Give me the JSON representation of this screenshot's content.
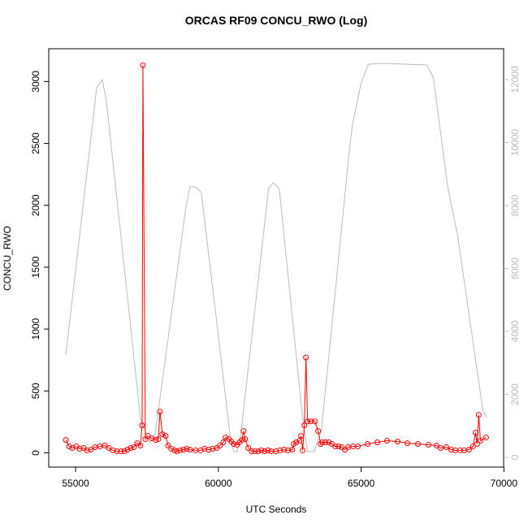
{
  "chart_data": {
    "type": "line",
    "title": "ORCAS RF09 CONCU_RWO (Log)",
    "xlabel": "UTC Seconds",
    "ylabel": "CONCU_RWO",
    "xlim": [
      54060,
      69990
    ],
    "ylim": [
      -115,
      3265
    ],
    "y2lim": [
      -310,
      12980
    ],
    "xticks": [
      55000,
      60000,
      65000,
      70000
    ],
    "yticks": [
      0,
      500,
      1000,
      1500,
      2000,
      2500,
      3000
    ],
    "y2ticks": [
      0,
      2000,
      4000,
      6000,
      8000,
      10000,
      12000
    ],
    "y2color": "#bbbbbb",
    "series": [
      {
        "color": "#ff0000",
        "marker": "circle",
        "x": [
          54659,
          54773,
          54886,
          55028,
          55142,
          55284,
          55398,
          55540,
          55682,
          55852,
          56023,
          56165,
          56307,
          56449,
          56591,
          56705,
          56818,
          56932,
          57045,
          57159,
          57273,
          57330,
          57358,
          57443,
          57528,
          57670,
          57812,
          57898,
          57955,
          58040,
          58153,
          58239,
          58352,
          58466,
          58551,
          58665,
          58778,
          58892,
          59006,
          59205,
          59375,
          59517,
          59659,
          59801,
          59943,
          60057,
          60170,
          60256,
          60369,
          60455,
          60540,
          60653,
          60739,
          60824,
          60881,
          60938,
          61051,
          61165,
          61278,
          61392,
          61506,
          61619,
          61733,
          61847,
          62017,
          62159,
          62301,
          62443,
          62585,
          62642,
          62727,
          62841,
          62898,
          62955,
          63011,
          63068,
          63125,
          63239,
          63381,
          63494,
          63580,
          63636,
          63750,
          63864,
          63977,
          64091,
          64205,
          64318,
          64432,
          64545,
          64716,
          64886,
          65227,
          65568,
          65909,
          66278,
          66619,
          66989,
          67358,
          67642,
          67784,
          67983,
          68153,
          68295,
          68466,
          68608,
          68778,
          68920,
          69006,
          69062,
          69119,
          69176,
          69375
        ],
        "values": [
          104,
          52,
          39,
          52,
          33,
          39,
          20,
          26,
          46,
          52,
          59,
          39,
          20,
          13,
          13,
          13,
          26,
          39,
          46,
          78,
          59,
          222,
          3131,
          111,
          137,
          117,
          104,
          111,
          333,
          150,
          137,
          59,
          33,
          20,
          13,
          20,
          26,
          33,
          26,
          20,
          20,
          33,
          26,
          33,
          39,
          59,
          85,
          124,
          111,
          91,
          72,
          65,
          85,
          104,
          176,
          111,
          39,
          13,
          13,
          13,
          20,
          13,
          20,
          13,
          13,
          20,
          26,
          20,
          26,
          72,
          85,
          98,
          137,
          20,
          222,
          770,
          254,
          254,
          254,
          176,
          72,
          85,
          85,
          85,
          72,
          52,
          52,
          46,
          26,
          46,
          52,
          52,
          72,
          85,
          98,
          91,
          78,
          72,
          65,
          59,
          39,
          46,
          26,
          20,
          20,
          20,
          26,
          52,
          163,
          72,
          307,
          98,
          124
        ]
      },
      {
        "color": "#bbbbbb",
        "axis": "y2",
        "x": [
          54659,
          55739,
          55937,
          56080,
          57273,
          57585,
          57784,
          58864,
          59006,
          59205,
          59403,
          60426,
          60540,
          60653,
          60767,
          61761,
          61932,
          62131,
          62955,
          63125,
          63352,
          63608,
          64545,
          64688,
          65000,
          65256,
          65739,
          67301,
          67528,
          68040,
          68381,
          69261,
          69403
        ],
        "values": [
          3250,
          11742,
          12000,
          11303,
          1239,
          465,
          723,
          7948,
          8594,
          8594,
          8413,
          594,
          181,
          181,
          594,
          8542,
          8723,
          8542,
          1213,
          181,
          181,
          852,
          9368,
          10529,
          11897,
          12490,
          12516,
          12465,
          12077,
          8542,
          7045,
          1497,
          1265
        ]
      }
    ]
  }
}
